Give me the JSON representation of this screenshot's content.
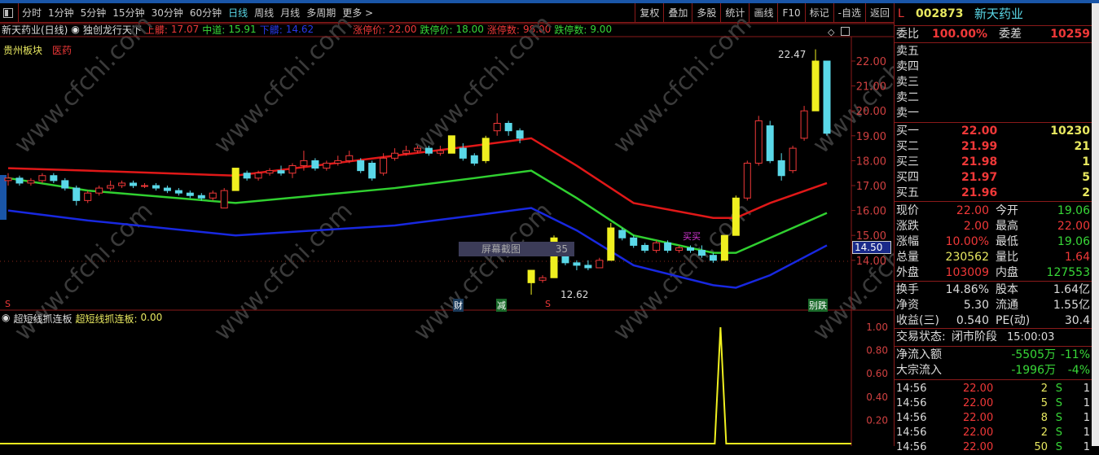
{
  "menu": {
    "items": [
      "分时",
      "1分钟",
      "5分钟",
      "15分钟",
      "30分钟",
      "60分钟",
      "日线",
      "周线",
      "月线",
      "多周期",
      "更多 >"
    ],
    "active": 6,
    "right_buttons": [
      "复权",
      "叠加",
      "多股",
      "统计",
      "画线",
      "F10",
      "标记",
      "-自选",
      "返回"
    ]
  },
  "info": {
    "title": "新天药业(日线)",
    "indicator": "独创龙行天下",
    "upper_label": "上髒:",
    "upper": "17.07",
    "mid_label": "中道:",
    "mid": "15.91",
    "lower_label": "下髒:",
    "lower": "14.62",
    "zt_label": "涨停价:",
    "zt": "22.00",
    "dt_label": "跌停价:",
    "dt": "18.00",
    "ztn_label": "涨停数:",
    "ztn": "98.00",
    "dtn_label": "跌停数:",
    "dtn": "9.00"
  },
  "sector": {
    "board": "贵州板块",
    "industry": "医药"
  },
  "annotations": {
    "high": "22.47",
    "low": "12.62",
    "tooltip_label": "屏幕截图",
    "tooltip_value": "35",
    "buy": "买买",
    "markers": [
      "S",
      "财",
      "减",
      "S",
      "别跌"
    ],
    "current_price_tag": "14.50"
  },
  "watermark": "www.cfchi.com",
  "price_axis": [
    "22.00",
    "21.00",
    "20.00",
    "19.00",
    "18.00",
    "17.00",
    "16.00",
    "15.00",
    "14.00"
  ],
  "lower_panel": {
    "name": "超短线抓连板",
    "value_label": "超短线抓连板:",
    "value": "0.00",
    "axis": [
      "1.00",
      "0.80",
      "0.60",
      "0.40",
      "0.20"
    ]
  },
  "colors": {
    "up": "#f03838",
    "down": "#5ad8e8",
    "signal": "#f0f020",
    "upper": "#e01818",
    "mid": "#30d030",
    "lower": "#1828e0",
    "bg": "#000000"
  },
  "chart_data": {
    "type": "candlestick",
    "candles": [
      [
        17.2,
        17.5,
        17.0,
        17.3
      ],
      [
        17.3,
        17.4,
        17.0,
        17.1
      ],
      [
        17.1,
        17.3,
        17.0,
        17.2
      ],
      [
        17.2,
        17.5,
        17.1,
        17.4
      ],
      [
        17.4,
        17.5,
        17.1,
        17.2
      ],
      [
        17.2,
        17.3,
        16.8,
        16.9
      ],
      [
        16.9,
        17.0,
        16.2,
        16.4
      ],
      [
        16.4,
        16.8,
        16.3,
        16.7
      ],
      [
        16.7,
        17.0,
        16.6,
        16.9
      ],
      [
        16.9,
        17.2,
        16.8,
        17.0
      ],
      [
        17.0,
        17.2,
        16.9,
        17.1
      ],
      [
        17.1,
        17.2,
        16.9,
        17.0
      ],
      [
        17.0,
        17.1,
        16.9,
        17.0
      ],
      [
        17.0,
        17.1,
        16.8,
        16.9
      ],
      [
        16.9,
        17.0,
        16.7,
        16.8
      ],
      [
        16.8,
        16.9,
        16.6,
        16.7
      ],
      [
        16.7,
        16.8,
        16.5,
        16.6
      ],
      [
        16.6,
        16.7,
        16.4,
        16.5
      ],
      [
        16.5,
        16.8,
        16.4,
        16.7
      ],
      [
        16.1,
        16.9,
        16.1,
        16.8
      ],
      [
        16.8,
        17.7,
        16.8,
        17.7
      ],
      [
        17.5,
        17.6,
        17.2,
        17.3
      ],
      [
        17.3,
        17.6,
        17.2,
        17.5
      ],
      [
        17.5,
        17.7,
        17.4,
        17.6
      ],
      [
        17.6,
        17.8,
        17.4,
        17.5
      ],
      [
        17.5,
        17.9,
        17.3,
        17.8
      ],
      [
        17.8,
        18.4,
        17.6,
        18.0
      ],
      [
        18.0,
        18.1,
        17.6,
        17.7
      ],
      [
        17.7,
        18.0,
        17.6,
        17.9
      ],
      [
        17.9,
        18.2,
        17.8,
        18.0
      ],
      [
        18.0,
        18.4,
        17.9,
        18.2
      ],
      [
        18.0,
        18.1,
        17.5,
        17.6
      ],
      [
        17.9,
        18.0,
        17.2,
        17.3
      ],
      [
        17.5,
        18.3,
        17.4,
        18.1
      ],
      [
        18.1,
        18.5,
        18.0,
        18.3
      ],
      [
        18.3,
        18.6,
        18.2,
        18.4
      ],
      [
        18.4,
        18.6,
        18.3,
        18.5
      ],
      [
        18.5,
        18.6,
        18.2,
        18.3
      ],
      [
        18.3,
        18.6,
        18.2,
        18.4
      ],
      [
        18.3,
        19.0,
        18.3,
        19.0
      ],
      [
        18.5,
        18.7,
        18.0,
        18.1
      ],
      [
        18.2,
        18.3,
        17.8,
        17.9
      ],
      [
        18.0,
        19.0,
        17.9,
        18.9
      ],
      [
        19.2,
        19.9,
        19.0,
        19.5
      ],
      [
        19.5,
        19.6,
        19.0,
        19.2
      ],
      [
        19.2,
        19.3,
        18.7,
        18.9
      ],
      [
        13.6,
        13.6,
        12.62,
        13.1
      ],
      [
        13.2,
        13.4,
        13.1,
        13.3
      ],
      [
        13.3,
        15.0,
        13.3,
        14.9
      ],
      [
        14.6,
        14.7,
        13.8,
        13.9
      ],
      [
        13.9,
        14.0,
        13.6,
        13.8
      ],
      [
        13.8,
        14.0,
        13.6,
        13.7
      ],
      [
        13.7,
        14.1,
        13.7,
        14.0
      ],
      [
        14.0,
        15.5,
        14.0,
        15.3
      ],
      [
        15.2,
        15.3,
        14.8,
        14.9
      ],
      [
        14.9,
        15.0,
        14.5,
        14.6
      ],
      [
        14.6,
        14.7,
        14.3,
        14.4
      ],
      [
        14.4,
        14.8,
        14.3,
        14.7
      ],
      [
        14.7,
        14.8,
        14.3,
        14.4
      ],
      [
        14.4,
        14.6,
        14.3,
        14.5
      ],
      [
        14.5,
        14.6,
        14.3,
        14.4
      ],
      [
        14.4,
        14.6,
        14.1,
        14.2
      ],
      [
        14.2,
        14.3,
        13.9,
        14.0
      ],
      [
        14.0,
        15.0,
        14.0,
        15.0
      ],
      [
        15.0,
        16.6,
        15.0,
        16.5
      ],
      [
        16.5,
        18.0,
        16.4,
        17.9
      ],
      [
        17.9,
        19.8,
        17.8,
        19.6
      ],
      [
        19.4,
        19.6,
        17.9,
        18.0
      ],
      [
        18.0,
        18.3,
        17.2,
        17.4
      ],
      [
        17.6,
        18.6,
        17.5,
        18.5
      ],
      [
        18.9,
        20.2,
        18.8,
        20.0
      ],
      [
        20.0,
        22.47,
        20.0,
        22.0
      ],
      [
        22.0,
        22.0,
        19.0,
        19.1
      ]
    ],
    "signal_candles": [
      20,
      39,
      42,
      46,
      48,
      53,
      63,
      64,
      71
    ],
    "bands": {
      "upper": [
        [
          0,
          17.7
        ],
        [
          7,
          17.6
        ],
        [
          20,
          17.4
        ],
        [
          34,
          18.2
        ],
        [
          41,
          18.6
        ],
        [
          46,
          18.9
        ],
        [
          50,
          17.8
        ],
        [
          55,
          16.3
        ],
        [
          62,
          15.7
        ],
        [
          64,
          15.7
        ],
        [
          67,
          16.3
        ],
        [
          72,
          17.1
        ]
      ],
      "mid": [
        [
          0,
          17.3
        ],
        [
          7,
          16.8
        ],
        [
          20,
          16.3
        ],
        [
          34,
          16.9
        ],
        [
          41,
          17.3
        ],
        [
          46,
          17.6
        ],
        [
          50,
          16.5
        ],
        [
          55,
          15.0
        ],
        [
          62,
          14.3
        ],
        [
          64,
          14.3
        ],
        [
          67,
          14.9
        ],
        [
          72,
          15.9
        ]
      ],
      "lower": [
        [
          0,
          16.0
        ],
        [
          7,
          15.6
        ],
        [
          20,
          15.0
        ],
        [
          34,
          15.4
        ],
        [
          41,
          15.8
        ],
        [
          46,
          16.1
        ],
        [
          50,
          15.2
        ],
        [
          55,
          13.8
        ],
        [
          62,
          13.0
        ],
        [
          64,
          12.9
        ],
        [
          67,
          13.4
        ],
        [
          72,
          14.6
        ]
      ]
    },
    "indicator": {
      "spike_index": 63,
      "spike_value": 1.0,
      "baseline": 0.0
    },
    "ylim": [
      13.7,
      22.5
    ]
  },
  "quote": {
    "flag": "L",
    "code": "002873",
    "name": "新天药业",
    "wb_label": "委比",
    "wb": "100.00%",
    "wc_label": "委差",
    "wc": "10259",
    "sell": [
      {
        "label": "卖五"
      },
      {
        "label": "卖四"
      },
      {
        "label": "卖三"
      },
      {
        "label": "卖二"
      },
      {
        "label": "卖一"
      }
    ],
    "buy": [
      {
        "label": "买一",
        "price": "22.00",
        "vol": "10230"
      },
      {
        "label": "买二",
        "price": "21.99",
        "vol": "21"
      },
      {
        "label": "买三",
        "price": "21.98",
        "vol": "1"
      },
      {
        "label": "买四",
        "price": "21.97",
        "vol": "5"
      },
      {
        "label": "买五",
        "price": "21.96",
        "vol": "2"
      }
    ],
    "stats": [
      {
        "l1": "现价",
        "v1": "22.00",
        "c1": "red",
        "l2": "今开",
        "v2": "19.06",
        "c2": "grn"
      },
      {
        "l1": "涨跌",
        "v1": "2.00",
        "c1": "red",
        "l2": "最高",
        "v2": "22.00",
        "c2": "red"
      },
      {
        "l1": "涨幅",
        "v1": "10.00%",
        "c1": "red",
        "l2": "最低",
        "v2": "19.06",
        "c2": "grn"
      },
      {
        "l1": "总量",
        "v1": "230562",
        "c1": "yel",
        "l2": "量比",
        "v2": "1.64",
        "c2": "red"
      },
      {
        "l1": "外盘",
        "v1": "103009",
        "c1": "red",
        "l2": "内盘",
        "v2": "127553",
        "c2": "grn"
      }
    ],
    "stats2": [
      {
        "l1": "换手",
        "v1": "14.86%",
        "l2": "股本",
        "v2": "1.64亿"
      },
      {
        "l1": "净资",
        "v1": "5.30",
        "l2": "流通",
        "v2": "1.55亿"
      },
      {
        "l1": "收益(三)",
        "v1": "0.540",
        "l2": "PE(动)",
        "v2": "30.4"
      }
    ],
    "status_label": "交易状态:",
    "status": "闭市阶段",
    "status_time": "15:00:03",
    "flows": [
      {
        "label": "净流入额",
        "value": "-5505万",
        "pct": "-11%"
      },
      {
        "label": "大宗流入",
        "value": "-1996万",
        "pct": "-4%"
      }
    ],
    "ticks": [
      {
        "t": "14:56",
        "p": "22.00",
        "v": "2",
        "s": "S",
        "n": "1"
      },
      {
        "t": "14:56",
        "p": "22.00",
        "v": "5",
        "s": "S",
        "n": "1"
      },
      {
        "t": "14:56",
        "p": "22.00",
        "v": "8",
        "s": "S",
        "n": "1"
      },
      {
        "t": "14:56",
        "p": "22.00",
        "v": "2",
        "s": "S",
        "n": "1"
      },
      {
        "t": "14:56",
        "p": "22.00",
        "v": "50",
        "s": "S",
        "n": "1"
      }
    ]
  }
}
